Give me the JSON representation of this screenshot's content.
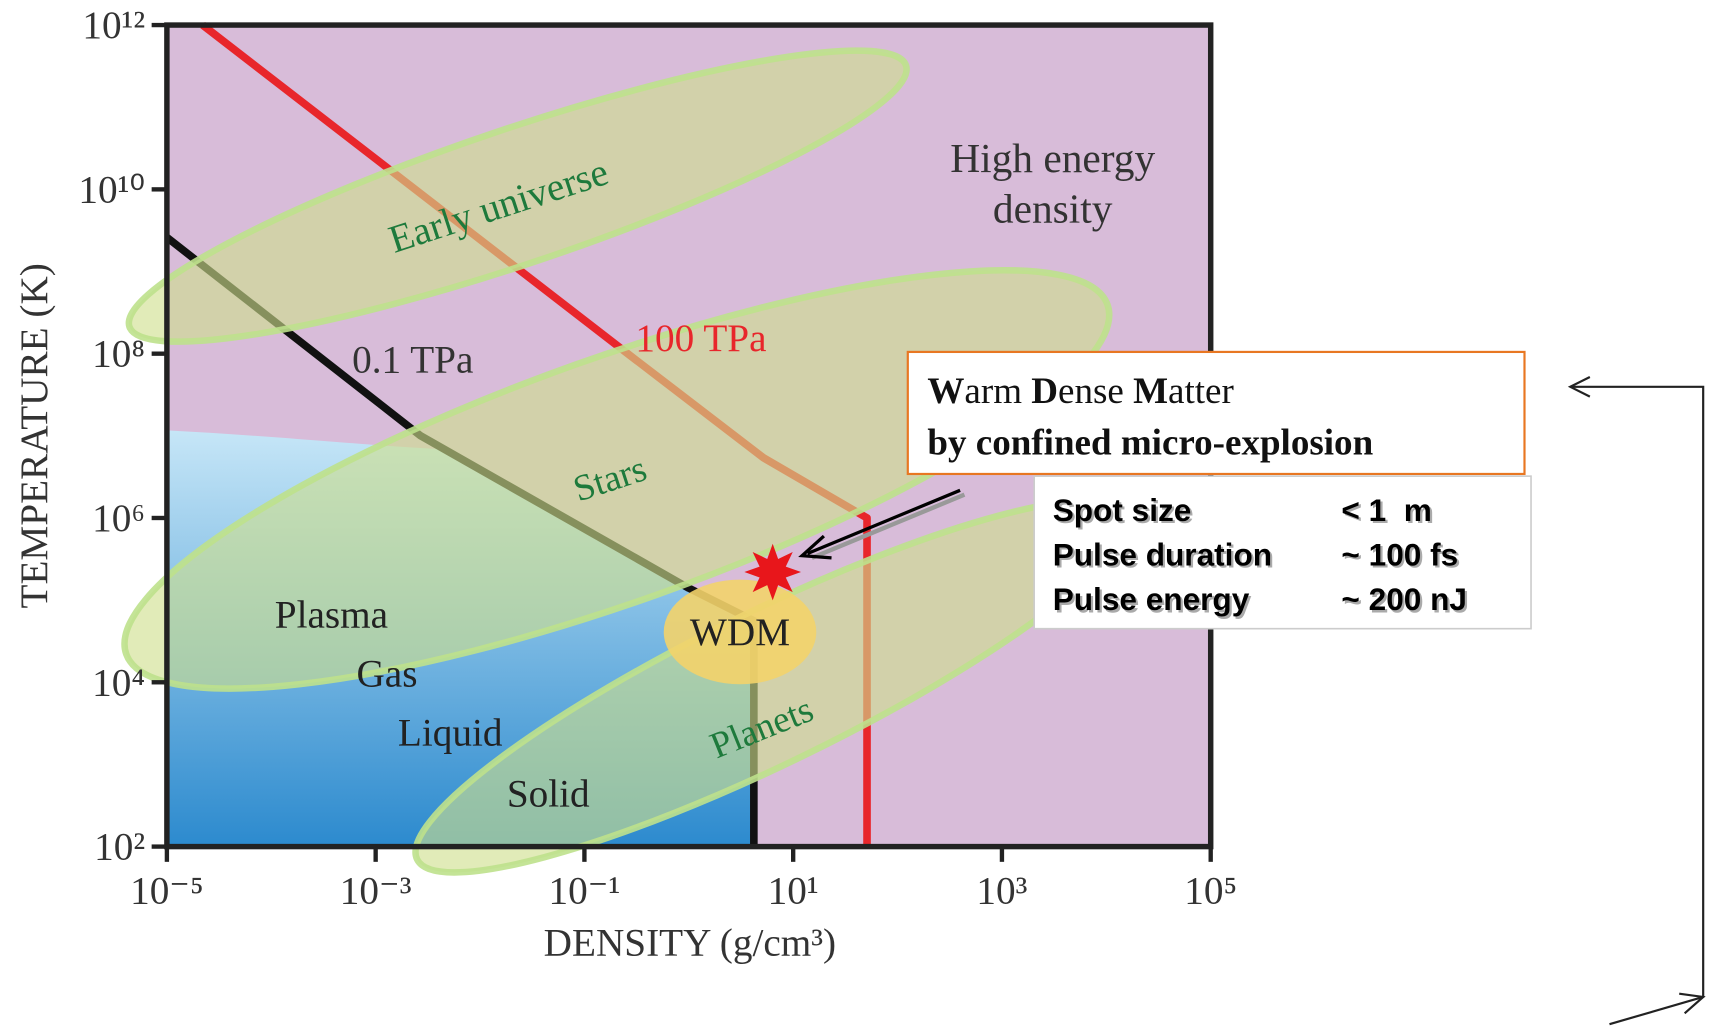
{
  "chart_data": {
    "type": "line",
    "x_label": "DENSITY (g/cm³)",
    "y_label": "TEMPERATURE (K)",
    "xlim": [
      1e-05,
      100000.0
    ],
    "ylim": [
      100.0,
      1000000000000.0
    ],
    "log_x": true,
    "log_y": true,
    "xticks": [
      {
        "value": 1e-05,
        "label": "10⁻⁵"
      },
      {
        "value": 0.001,
        "label": "10⁻³"
      },
      {
        "value": 0.1,
        "label": "10⁻¹"
      },
      {
        "value": 10,
        "label": "10¹"
      },
      {
        "value": 1000,
        "label": "10³"
      },
      {
        "value": 100000,
        "label": "10⁵"
      }
    ],
    "yticks": [
      {
        "value": 100,
        "label": "10²"
      },
      {
        "value": 10000,
        "label": "10⁴"
      },
      {
        "value": 1000000,
        "label": "10⁶"
      },
      {
        "value": 100000000,
        "label": "10⁸"
      },
      {
        "value": 10000000000,
        "label": "10¹⁰"
      },
      {
        "value": 1000000000000,
        "label": "10¹²"
      }
    ],
    "series": [
      {
        "name": "100 TPa",
        "color": "#e8262b",
        "x": [
          2.2e-05,
          0.26,
          5.2,
          51,
          51
        ],
        "values": [
          1000000000000.0,
          100000000.0,
          5400000.0,
          1000000.0,
          100
        ]
      },
      {
        "name": "0.1 TPa",
        "color": "#111111",
        "x": [
          1e-05,
          0.0027,
          1,
          4.2,
          4.2
        ],
        "values": [
          2600000000.0,
          10000000.0,
          140000.0,
          56000.0,
          100
        ]
      }
    ],
    "region_labels": [
      "Early universe",
      "Stars",
      "Planets",
      "Plasma",
      "Gas",
      "Liquid",
      "Solid",
      "WDM"
    ],
    "corner_label": [
      "High energy",
      "density"
    ],
    "callout": {
      "lines": [
        [
          {
            "text": "W",
            "bold": true
          },
          {
            "text": "arm ",
            "bold": false
          },
          {
            "text": "D",
            "bold": true
          },
          {
            "text": "ense ",
            "bold": false
          },
          {
            "text": "M",
            "bold": true
          },
          {
            "text": "atter",
            "bold": false
          }
        ],
        [
          {
            "text": "by confined micro-explosion",
            "bold": true
          }
        ]
      ],
      "table": [
        [
          "Spot size",
          "< 1  m"
        ],
        [
          "Pulse duration",
          "~ 100 fs"
        ],
        [
          "Pulse energy",
          "~ 200 nJ"
        ]
      ]
    }
  }
}
